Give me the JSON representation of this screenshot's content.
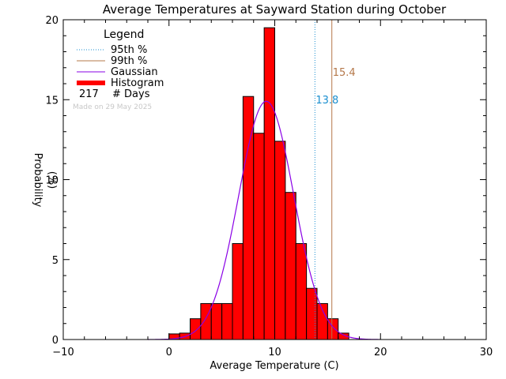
{
  "chart_data": {
    "type": "bar",
    "title": "Average Temperatures at Sayward Station during October",
    "xlabel": "Average Temperature (C)",
    "ylabel": "Probability",
    "ylabel_unit": "(%)",
    "xlim": [
      -10,
      30
    ],
    "ylim": [
      0,
      20
    ],
    "xticks": [
      "−10",
      "0",
      "10",
      "20",
      "30"
    ],
    "yticks": [
      "0",
      "5",
      "10",
      "15",
      "20"
    ],
    "bin_width": 1,
    "bins": [
      {
        "x0": 0,
        "x1": 1,
        "value": 0.35
      },
      {
        "x0": 1,
        "x1": 2,
        "value": 0.4
      },
      {
        "x0": 2,
        "x1": 3,
        "value": 1.3
      },
      {
        "x0": 3,
        "x1": 4,
        "value": 2.25
      },
      {
        "x0": 4,
        "x1": 5,
        "value": 2.25
      },
      {
        "x0": 5,
        "x1": 6,
        "value": 2.25
      },
      {
        "x0": 6,
        "x1": 7,
        "value": 6.0
      },
      {
        "x0": 7,
        "x1": 8,
        "value": 15.2
      },
      {
        "x0": 8,
        "x1": 9,
        "value": 12.9
      },
      {
        "x0": 9,
        "x1": 10,
        "value": 19.5
      },
      {
        "x0": 10,
        "x1": 11,
        "value": 12.4
      },
      {
        "x0": 11,
        "x1": 12,
        "value": 9.2
      },
      {
        "x0": 12,
        "x1": 13,
        "value": 6.0
      },
      {
        "x0": 13,
        "x1": 14,
        "value": 3.2
      },
      {
        "x0": 14,
        "x1": 15,
        "value": 2.25
      },
      {
        "x0": 15,
        "x1": 16,
        "value": 1.3
      },
      {
        "x0": 16,
        "x1": 17,
        "value": 0.4
      }
    ],
    "gaussian": {
      "mean": 9.2,
      "peak": 14.9,
      "sigma": 2.6
    },
    "percentiles": [
      {
        "name": "95th %",
        "value": 13.8,
        "label": "13.8",
        "color": "#1a8fd0",
        "style": "dotted"
      },
      {
        "name": "99th %",
        "value": 15.4,
        "label": "15.4",
        "color": "#b5784a",
        "style": "solid"
      }
    ],
    "legend": {
      "title": "Legend",
      "items": [
        {
          "label": "95th %",
          "color": "#1a8fd0",
          "style": "dotted"
        },
        {
          "label": "99th %",
          "color": "#b5784a",
          "style": "solid"
        },
        {
          "label": "Gaussian",
          "color": "#8a00e6",
          "style": "solid"
        },
        {
          "label": "Histogram",
          "color": "#ff0000",
          "style": "thick"
        }
      ],
      "count_value": "217",
      "count_label": "# Days",
      "placement": "top-left"
    },
    "annotation": "Made on 29 May 2025",
    "colors": {
      "histogram": "#ff0000",
      "gaussian": "#8a00e6"
    }
  }
}
